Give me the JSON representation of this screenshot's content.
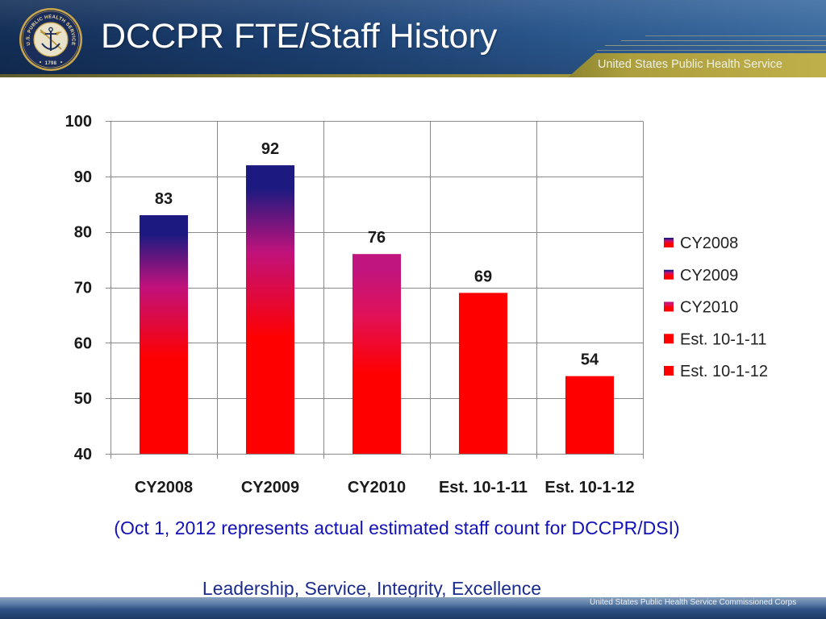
{
  "slide": {
    "title": "DCCPR FTE/Staff History",
    "org_banner": "United States Public Health Service",
    "caption": "(Oct 1, 2012 represents actual estimated staff count for DCCPR/DSI)",
    "motto": "Leadership, Service, Integrity, Excellence",
    "footer_banner": "United States Public Health Service Commissioned Corps"
  },
  "seal": {
    "text": "U.S. PUBLIC HEALTH SERVICE",
    "year": "1798",
    "emblem_icon": "anchor-caduceus-icon"
  },
  "colors": {
    "header_blue": "#1d4274",
    "accent_gold": "#b5a53f",
    "caption_text": "#1212b8",
    "motto_text": "#1c2c8c"
  },
  "chart_data": {
    "type": "bar",
    "categories": [
      "CY2008",
      "CY2009",
      "CY2010",
      "Est. 10-1-11",
      "Est. 10-1-12"
    ],
    "values": [
      83,
      92,
      76,
      69,
      54
    ],
    "ylim": [
      40,
      100
    ],
    "yticks": [
      40,
      50,
      60,
      70,
      80,
      90,
      100
    ],
    "grid": true,
    "data_labels": true,
    "legend": {
      "position": "right",
      "entries": [
        "CY2008",
        "CY2009",
        "CY2010",
        "Est. 10-1-11",
        "Est. 10-1-12"
      ]
    },
    "bar_colors": [
      {
        "top": "#1c1a80",
        "mid": "#c0127c",
        "bottom": "#ff0000"
      },
      {
        "top": "#1c1a80",
        "mid": "#c0127c",
        "bottom": "#ff0000"
      },
      {
        "top": "#c0147e",
        "mid": "#e0125a",
        "bottom": "#ff0000"
      },
      {
        "top": "#ff0000",
        "mid": "#ff0000",
        "bottom": "#ff0000"
      },
      {
        "top": "#ff0000",
        "mid": "#ff0000",
        "bottom": "#ff0000"
      }
    ]
  }
}
